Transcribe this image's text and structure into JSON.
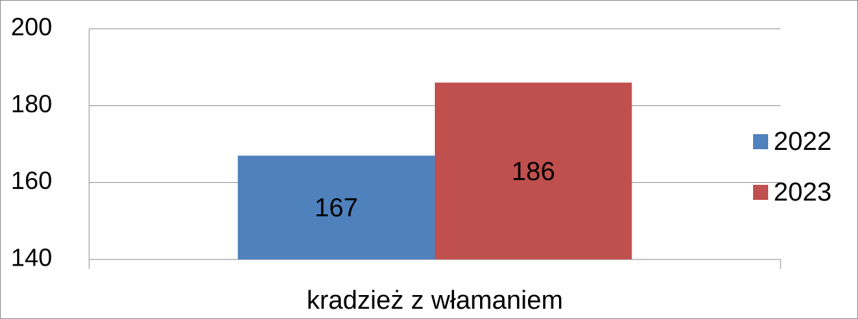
{
  "chart_data": {
    "type": "bar",
    "categories": [
      "kradzież z włamaniem"
    ],
    "series": [
      {
        "name": "2022",
        "color": "#4f81bd",
        "values": [
          167
        ]
      },
      {
        "name": "2023",
        "color": "#c0504d",
        "values": [
          186
        ]
      }
    ],
    "ylim": [
      140,
      200
    ],
    "yticks": [
      140,
      160,
      180,
      200
    ],
    "grid": true,
    "legend": "right",
    "data_labels": true
  }
}
